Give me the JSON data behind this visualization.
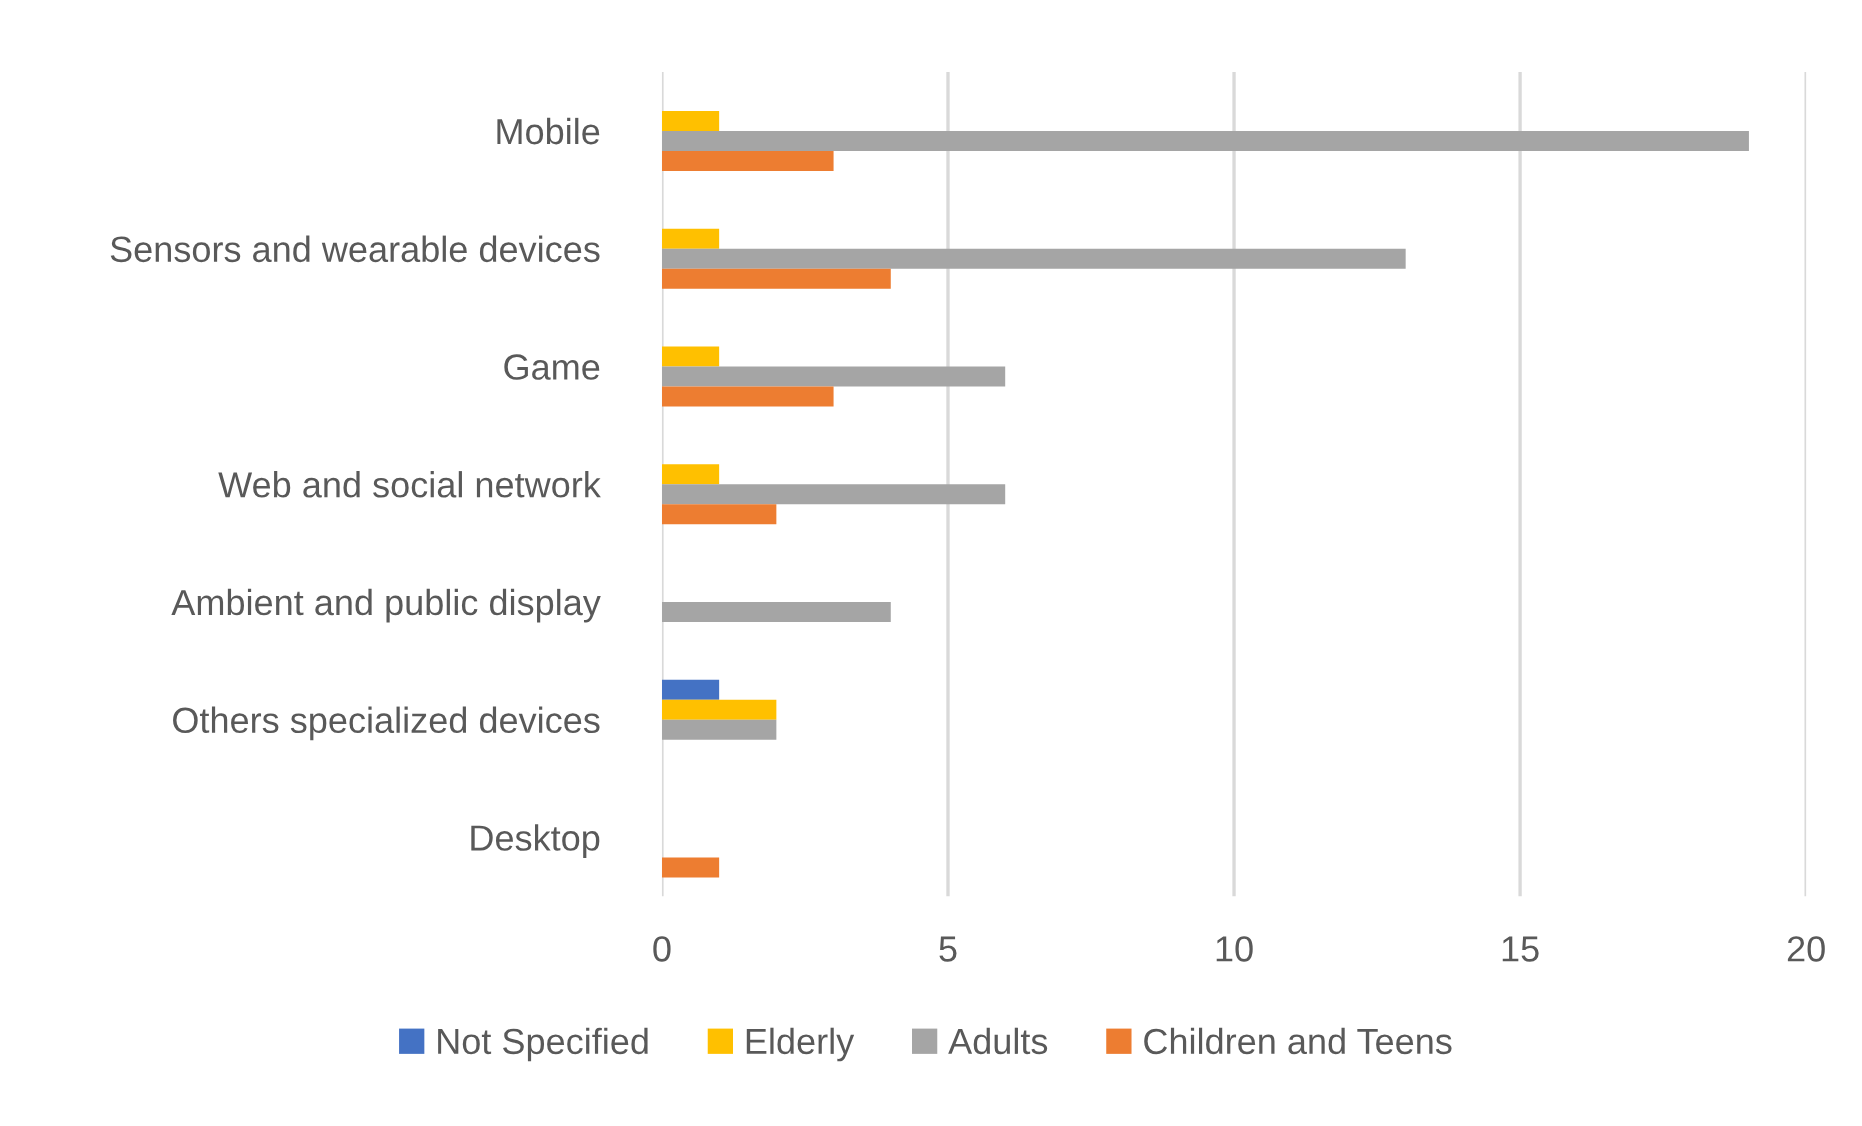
{
  "chart_data": {
    "type": "bar",
    "orientation": "horizontal",
    "categories": [
      "Mobile",
      "Sensors and wearable devices",
      "Game",
      "Web and social network",
      "Ambient and public display",
      "Others specialized devices",
      "Desktop"
    ],
    "series": [
      {
        "name": "Not Specified",
        "color": "#4472c4",
        "values": [
          null,
          null,
          null,
          null,
          null,
          1,
          null
        ]
      },
      {
        "name": "Elderly",
        "color": "#ffc000",
        "values": [
          1,
          1,
          1,
          1,
          null,
          2,
          null
        ]
      },
      {
        "name": "Adults",
        "color": "#a5a5a5",
        "values": [
          19,
          13,
          6,
          6,
          4,
          2,
          null
        ]
      },
      {
        "name": "Children and Teens",
        "color": "#ed7d31",
        "values": [
          3,
          4,
          3,
          2,
          null,
          null,
          1
        ]
      }
    ],
    "xlim": [
      0,
      20
    ],
    "xticks": [
      0,
      5,
      10,
      15,
      20
    ],
    "grid": "x",
    "legend": "bottom"
  }
}
